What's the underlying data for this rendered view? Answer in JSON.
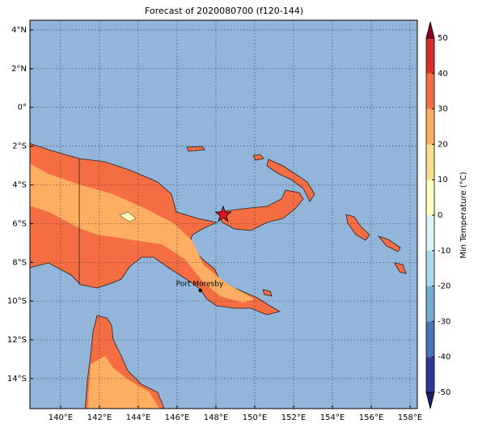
{
  "title": "Forecast of 2020080700 (f120-144)",
  "map": {
    "xlim": [
      138.42,
      158.375
    ],
    "ylim": [
      -15.55,
      4.5
    ],
    "xticks": [
      {
        "value": 140,
        "label": "140°E"
      },
      {
        "value": 142,
        "label": "142°E"
      },
      {
        "value": 144,
        "label": "144°E"
      },
      {
        "value": 146,
        "label": "146°E"
      },
      {
        "value": 148,
        "label": "148°E"
      },
      {
        "value": 150,
        "label": "150°E"
      },
      {
        "value": 152,
        "label": "152°E"
      },
      {
        "value": 154,
        "label": "154°E"
      },
      {
        "value": 156,
        "label": "156°E"
      },
      {
        "value": 158,
        "label": "158°E"
      }
    ],
    "yticks": [
      {
        "value": 4,
        "label": "4°N"
      },
      {
        "value": 2,
        "label": "2°N"
      },
      {
        "value": 0,
        "label": "0°"
      },
      {
        "value": -2,
        "label": "2°S"
      },
      {
        "value": -4,
        "label": "4°S"
      },
      {
        "value": -6,
        "label": "6°S"
      },
      {
        "value": -8,
        "label": "8°S"
      },
      {
        "value": -10,
        "label": "10°S"
      },
      {
        "value": -12,
        "label": "12°S"
      },
      {
        "value": -14,
        "label": "14°S"
      }
    ],
    "city": "Port Moresby"
  },
  "colorbar": {
    "label": "Min Temperature (°C)",
    "ticks": [
      -50,
      -40,
      -30,
      -20,
      -10,
      0,
      10,
      20,
      30,
      40,
      50
    ],
    "colors": [
      "#313695",
      "#4575b4",
      "#74add1",
      "#abd9e9",
      "#e0f3f8",
      "#ffffbf",
      "#fee090",
      "#fdae61",
      "#f46d43",
      "#d73027"
    ],
    "under_color": "#1c1f66",
    "over_color": "#8e0026"
  }
}
